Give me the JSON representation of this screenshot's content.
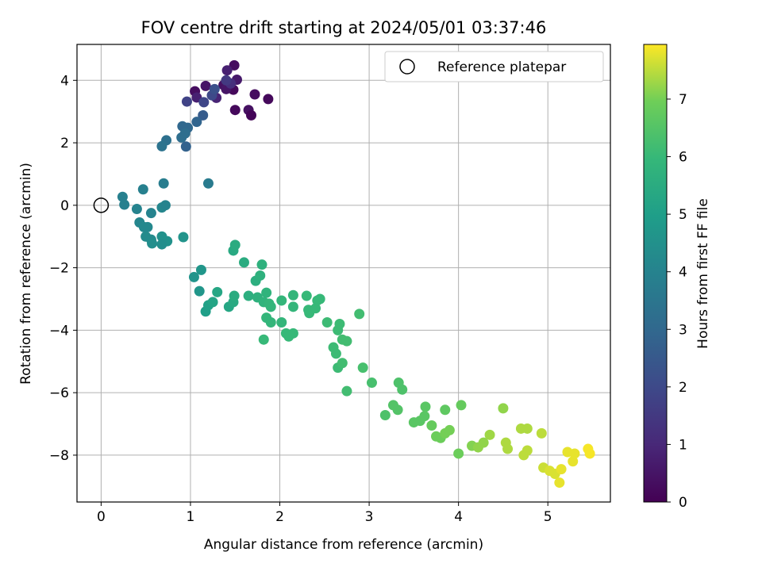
{
  "chart_data": {
    "type": "scatter",
    "title": "FOV centre drift starting at 2024/05/01 03:37:46",
    "xlabel": "Angular distance from reference (arcmin)",
    "ylabel": "Rotation from reference (arcmin)",
    "xlim": [
      -0.27,
      5.7
    ],
    "ylim": [
      -9.5,
      5.15
    ],
    "xticks": [
      0,
      1,
      2,
      3,
      4,
      5
    ],
    "yticks": [
      -8,
      -6,
      -4,
      -2,
      0,
      2,
      4
    ],
    "grid": true,
    "colormap": "viridis",
    "legend": {
      "label": "Reference platepar",
      "placement": "top-right"
    },
    "reference_point": {
      "x": 0,
      "y": 0
    },
    "colorbar": {
      "label": "Hours from first FF file",
      "range": [
        0,
        7.95
      ],
      "ticks": [
        0,
        1,
        2,
        3,
        4,
        5,
        6,
        7
      ]
    },
    "points": [
      {
        "x": 1.49,
        "y": 4.48,
        "h": 0.3
      },
      {
        "x": 1.37,
        "y": 3.85,
        "h": 0.4
      },
      {
        "x": 1.52,
        "y": 4.02,
        "h": 0.6
      },
      {
        "x": 1.05,
        "y": 3.65,
        "h": 0.3
      },
      {
        "x": 1.17,
        "y": 3.82,
        "h": 0.5
      },
      {
        "x": 1.41,
        "y": 4.32,
        "h": 0.8
      },
      {
        "x": 1.48,
        "y": 3.7,
        "h": 0.2
      },
      {
        "x": 1.4,
        "y": 3.72,
        "h": 0.5
      },
      {
        "x": 1.29,
        "y": 3.44,
        "h": 0.9
      },
      {
        "x": 1.72,
        "y": 3.55,
        "h": 0.3
      },
      {
        "x": 1.87,
        "y": 3.4,
        "h": 0.2
      },
      {
        "x": 1.5,
        "y": 3.05,
        "h": 0.2
      },
      {
        "x": 1.65,
        "y": 3.05,
        "h": 0.4
      },
      {
        "x": 1.68,
        "y": 2.88,
        "h": 0.1
      },
      {
        "x": 1.07,
        "y": 3.45,
        "h": 0.8
      },
      {
        "x": 1.45,
        "y": 3.9,
        "h": 1.2
      },
      {
        "x": 0.96,
        "y": 3.32,
        "h": 1.8
      },
      {
        "x": 1.15,
        "y": 3.3,
        "h": 1.9
      },
      {
        "x": 1.24,
        "y": 3.52,
        "h": 2.0
      },
      {
        "x": 1.27,
        "y": 3.72,
        "h": 2.2
      },
      {
        "x": 1.4,
        "y": 4.0,
        "h": 1.5
      },
      {
        "x": 1.14,
        "y": 2.88,
        "h": 2.6
      },
      {
        "x": 1.07,
        "y": 2.67,
        "h": 2.9
      },
      {
        "x": 0.97,
        "y": 2.48,
        "h": 3.0
      },
      {
        "x": 0.91,
        "y": 2.53,
        "h": 3.0
      },
      {
        "x": 0.94,
        "y": 2.3,
        "h": 3.2
      },
      {
        "x": 0.9,
        "y": 2.17,
        "h": 3.2
      },
      {
        "x": 0.73,
        "y": 2.08,
        "h": 3.3
      },
      {
        "x": 0.68,
        "y": 1.89,
        "h": 3.4
      },
      {
        "x": 0.95,
        "y": 1.88,
        "h": 2.8
      },
      {
        "x": 1.2,
        "y": 0.7,
        "h": 3.7
      },
      {
        "x": 0.7,
        "y": 0.7,
        "h": 3.8
      },
      {
        "x": 0.47,
        "y": 0.51,
        "h": 3.9
      },
      {
        "x": 0.24,
        "y": 0.27,
        "h": 3.9
      },
      {
        "x": 0.26,
        "y": 0.02,
        "h": 3.9
      },
      {
        "x": 0.4,
        "y": -0.12,
        "h": 4.0
      },
      {
        "x": 0.56,
        "y": -0.25,
        "h": 4.0
      },
      {
        "x": 0.68,
        "y": -0.07,
        "h": 4.1
      },
      {
        "x": 0.72,
        "y": 0.0,
        "h": 4.0
      },
      {
        "x": 0.43,
        "y": -0.55,
        "h": 4.1
      },
      {
        "x": 0.48,
        "y": -0.7,
        "h": 4.2
      },
      {
        "x": 0.52,
        "y": -0.7,
        "h": 4.2
      },
      {
        "x": 0.5,
        "y": -1.0,
        "h": 4.3
      },
      {
        "x": 0.56,
        "y": -1.1,
        "h": 4.3
      },
      {
        "x": 0.57,
        "y": -1.22,
        "h": 4.4
      },
      {
        "x": 0.68,
        "y": -1.0,
        "h": 4.5
      },
      {
        "x": 0.7,
        "y": -1.15,
        "h": 4.5
      },
      {
        "x": 0.74,
        "y": -1.15,
        "h": 4.5
      },
      {
        "x": 0.92,
        "y": -1.02,
        "h": 4.6
      },
      {
        "x": 0.68,
        "y": -1.25,
        "h": 4.4
      },
      {
        "x": 1.04,
        "y": -2.3,
        "h": 4.6
      },
      {
        "x": 1.12,
        "y": -2.07,
        "h": 4.7
      },
      {
        "x": 1.1,
        "y": -2.75,
        "h": 4.7
      },
      {
        "x": 1.17,
        "y": -3.4,
        "h": 5.0
      },
      {
        "x": 1.2,
        "y": -3.2,
        "h": 5.1
      },
      {
        "x": 1.25,
        "y": -3.1,
        "h": 5.2
      },
      {
        "x": 1.3,
        "y": -2.78,
        "h": 5.3
      },
      {
        "x": 1.43,
        "y": -3.25,
        "h": 5.3
      },
      {
        "x": 1.48,
        "y": -3.1,
        "h": 5.4
      },
      {
        "x": 1.49,
        "y": -2.9,
        "h": 5.5
      },
      {
        "x": 1.48,
        "y": -1.45,
        "h": 5.4
      },
      {
        "x": 1.5,
        "y": -1.27,
        "h": 5.5
      },
      {
        "x": 1.6,
        "y": -1.83,
        "h": 5.5
      },
      {
        "x": 1.65,
        "y": -2.9,
        "h": 5.6
      },
      {
        "x": 1.73,
        "y": -2.42,
        "h": 5.6
      },
      {
        "x": 1.78,
        "y": -2.25,
        "h": 5.7
      },
      {
        "x": 1.8,
        "y": -1.9,
        "h": 5.7
      },
      {
        "x": 1.75,
        "y": -2.95,
        "h": 5.7
      },
      {
        "x": 1.82,
        "y": -3.1,
        "h": 5.8
      },
      {
        "x": 1.85,
        "y": -2.8,
        "h": 5.8
      },
      {
        "x": 1.88,
        "y": -3.15,
        "h": 5.9
      },
      {
        "x": 1.9,
        "y": -3.25,
        "h": 5.9
      },
      {
        "x": 1.85,
        "y": -3.6,
        "h": 5.9
      },
      {
        "x": 1.9,
        "y": -3.75,
        "h": 5.9
      },
      {
        "x": 1.82,
        "y": -4.3,
        "h": 6.0
      },
      {
        "x": 2.02,
        "y": -3.05,
        "h": 5.9
      },
      {
        "x": 2.02,
        "y": -3.75,
        "h": 5.9
      },
      {
        "x": 2.07,
        "y": -4.1,
        "h": 6.0
      },
      {
        "x": 2.1,
        "y": -4.2,
        "h": 6.0
      },
      {
        "x": 2.15,
        "y": -4.1,
        "h": 6.0
      },
      {
        "x": 2.15,
        "y": -2.88,
        "h": 5.9
      },
      {
        "x": 2.15,
        "y": -3.25,
        "h": 5.9
      },
      {
        "x": 2.3,
        "y": -2.9,
        "h": 6.0
      },
      {
        "x": 2.32,
        "y": -3.35,
        "h": 6.0
      },
      {
        "x": 2.33,
        "y": -3.45,
        "h": 6.0
      },
      {
        "x": 2.4,
        "y": -3.3,
        "h": 6.0
      },
      {
        "x": 2.42,
        "y": -3.05,
        "h": 6.0
      },
      {
        "x": 2.45,
        "y": -3.0,
        "h": 6.0
      },
      {
        "x": 2.53,
        "y": -3.75,
        "h": 6.1
      },
      {
        "x": 2.6,
        "y": -4.55,
        "h": 6.1
      },
      {
        "x": 2.63,
        "y": -4.75,
        "h": 6.1
      },
      {
        "x": 2.65,
        "y": -5.2,
        "h": 6.1
      },
      {
        "x": 2.65,
        "y": -4.0,
        "h": 6.1
      },
      {
        "x": 2.67,
        "y": -3.8,
        "h": 6.1
      },
      {
        "x": 2.7,
        "y": -4.3,
        "h": 6.2
      },
      {
        "x": 2.75,
        "y": -4.35,
        "h": 6.2
      },
      {
        "x": 2.7,
        "y": -5.05,
        "h": 6.2
      },
      {
        "x": 2.75,
        "y": -5.95,
        "h": 6.2
      },
      {
        "x": 2.89,
        "y": -3.48,
        "h": 6.2
      },
      {
        "x": 2.93,
        "y": -5.2,
        "h": 6.3
      },
      {
        "x": 3.03,
        "y": -5.68,
        "h": 6.3
      },
      {
        "x": 3.18,
        "y": -6.72,
        "h": 6.4
      },
      {
        "x": 3.27,
        "y": -6.4,
        "h": 6.5
      },
      {
        "x": 3.32,
        "y": -6.55,
        "h": 6.5
      },
      {
        "x": 3.33,
        "y": -5.68,
        "h": 6.4
      },
      {
        "x": 3.37,
        "y": -5.9,
        "h": 6.4
      },
      {
        "x": 3.5,
        "y": -6.95,
        "h": 6.6
      },
      {
        "x": 3.57,
        "y": -6.9,
        "h": 6.6
      },
      {
        "x": 3.62,
        "y": -6.75,
        "h": 6.6
      },
      {
        "x": 3.63,
        "y": -6.45,
        "h": 6.6
      },
      {
        "x": 3.7,
        "y": -7.05,
        "h": 6.8
      },
      {
        "x": 3.75,
        "y": -7.4,
        "h": 6.9
      },
      {
        "x": 3.8,
        "y": -7.45,
        "h": 6.9
      },
      {
        "x": 3.85,
        "y": -7.3,
        "h": 7.0
      },
      {
        "x": 3.85,
        "y": -6.55,
        "h": 6.7
      },
      {
        "x": 3.9,
        "y": -7.2,
        "h": 7.0
      },
      {
        "x": 4.0,
        "y": -7.95,
        "h": 6.9
      },
      {
        "x": 4.03,
        "y": -6.4,
        "h": 6.8
      },
      {
        "x": 4.15,
        "y": -7.7,
        "h": 7.1
      },
      {
        "x": 4.22,
        "y": -7.75,
        "h": 7.2
      },
      {
        "x": 4.28,
        "y": -7.6,
        "h": 7.2
      },
      {
        "x": 4.35,
        "y": -7.35,
        "h": 7.3
      },
      {
        "x": 4.5,
        "y": -6.5,
        "h": 7.2
      },
      {
        "x": 4.53,
        "y": -7.6,
        "h": 7.4
      },
      {
        "x": 4.55,
        "y": -7.8,
        "h": 7.4
      },
      {
        "x": 4.7,
        "y": -7.15,
        "h": 7.4
      },
      {
        "x": 4.73,
        "y": -8.0,
        "h": 7.5
      },
      {
        "x": 4.77,
        "y": -7.85,
        "h": 7.5
      },
      {
        "x": 4.77,
        "y": -7.15,
        "h": 7.4
      },
      {
        "x": 4.93,
        "y": -7.3,
        "h": 7.5
      },
      {
        "x": 4.95,
        "y": -8.4,
        "h": 7.6
      },
      {
        "x": 5.02,
        "y": -8.5,
        "h": 7.7
      },
      {
        "x": 5.08,
        "y": -8.6,
        "h": 7.7
      },
      {
        "x": 5.13,
        "y": -8.88,
        "h": 7.8
      },
      {
        "x": 5.15,
        "y": -8.45,
        "h": 7.8
      },
      {
        "x": 5.22,
        "y": -7.9,
        "h": 7.8
      },
      {
        "x": 5.28,
        "y": -8.2,
        "h": 7.8
      },
      {
        "x": 5.3,
        "y": -7.95,
        "h": 7.8
      },
      {
        "x": 5.45,
        "y": -7.8,
        "h": 7.9
      },
      {
        "x": 5.47,
        "y": -7.95,
        "h": 7.9
      }
    ]
  }
}
